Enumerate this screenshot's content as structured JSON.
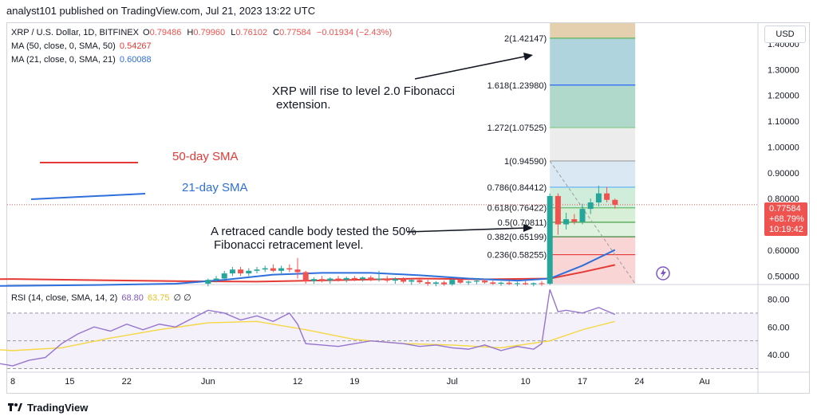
{
  "header": {
    "publisher_text": "analyst101 published on TradingView.com, Jul 21, 2023 13:22 UTC"
  },
  "legend": {
    "symbol": "XRP / U.S. Dollar, 1D, BITFINEX",
    "ohlc": {
      "O": "0.79486",
      "H": "0.79960",
      "L": "0.76102",
      "C": "0.77584",
      "change": "−0.01934 (−2.43%)"
    },
    "ma50_label": "MA (50, close, 0, SMA, 50)",
    "ma50_value": "0.54267",
    "ma21_label": "MA (21, close, 0, SMA, 21)",
    "ma21_value": "0.60088",
    "rsi_label": "RSI (14, close, SMA, 14, 2)",
    "rsi_value": "68.80",
    "rsi_sma_value": "63.75",
    "rsi_extra": "∅ ∅"
  },
  "currency": "USD",
  "price_tag": {
    "price": "0.77584",
    "change": "+68.79%",
    "countdown": "10:19:42"
  },
  "annotations": {
    "top_text_line1": "XRP   will rise to level 2.0 Fibonacci",
    "top_text_line2": "extension.",
    "bottom_text_line1": "A retraced candle body tested the 50%",
    "bottom_text_line2": "Fibonacci retracement level.",
    "sma50_label": "50-day SMA",
    "sma21_label": "21-day SMA"
  },
  "footer": {
    "brand": "TradingView"
  },
  "colors": {
    "up": "#26a69a",
    "down": "#ef5350",
    "sma50": "#e53935",
    "sma21": "#2e6fdb",
    "rsi": "#9575cd",
    "rsi_sma": "#f5d742"
  },
  "chart_data": {
    "type": "candlestick",
    "price_axis": {
      "min": 0.47,
      "max": 1.48,
      "ticks": [
        "1.40000",
        "1.30000",
        "1.20000",
        "1.10000",
        "1.00000",
        "0.90000",
        "0.80000",
        "0.60000",
        "0.50000"
      ],
      "tick_values": [
        1.4,
        1.3,
        1.2,
        1.1,
        1.0,
        0.9,
        0.8,
        0.6,
        0.5
      ]
    },
    "x_axis": {
      "labels": [
        "8",
        "15",
        "22",
        "Jun",
        "12",
        "19",
        "Jul",
        "10",
        "17",
        "24",
        "Au"
      ],
      "label_days": [
        0,
        7,
        14,
        24,
        35,
        42,
        54,
        63,
        70,
        77,
        85
      ]
    },
    "fibonacci": [
      {
        "ratio": "2",
        "price": "1.42147",
        "value": 1.42147
      },
      {
        "ratio": "1.618",
        "price": "1.23980",
        "value": 1.2398
      },
      {
        "ratio": "1.272",
        "price": "1.07525",
        "value": 1.07525
      },
      {
        "ratio": "1",
        "price": "0.94590",
        "value": 0.9459
      },
      {
        "ratio": "0.786",
        "price": "0.84412",
        "value": 0.84412
      },
      {
        "ratio": "0.618",
        "price": "0.76422",
        "value": 0.76422
      },
      {
        "ratio": "0.5",
        "price": "0.70811",
        "value": 0.70811
      },
      {
        "ratio": "0.382",
        "price": "0.65199",
        "value": 0.65199
      },
      {
        "ratio": "0.236",
        "price": "0.58255",
        "value": 0.58255
      }
    ],
    "candles": [
      {
        "d": 24,
        "o": 0.47,
        "h": 0.49,
        "l": 0.46,
        "c": 0.485
      },
      {
        "d": 25,
        "o": 0.485,
        "h": 0.5,
        "l": 0.475,
        "c": 0.49
      },
      {
        "d": 26,
        "o": 0.49,
        "h": 0.52,
        "l": 0.485,
        "c": 0.51
      },
      {
        "d": 27,
        "o": 0.51,
        "h": 0.535,
        "l": 0.5,
        "c": 0.525
      },
      {
        "d": 28,
        "o": 0.525,
        "h": 0.535,
        "l": 0.5,
        "c": 0.51
      },
      {
        "d": 29,
        "o": 0.51,
        "h": 0.53,
        "l": 0.5,
        "c": 0.52
      },
      {
        "d": 30,
        "o": 0.52,
        "h": 0.535,
        "l": 0.51,
        "c": 0.525
      },
      {
        "d": 31,
        "o": 0.525,
        "h": 0.54,
        "l": 0.515,
        "c": 0.53
      },
      {
        "d": 32,
        "o": 0.53,
        "h": 0.545,
        "l": 0.515,
        "c": 0.52
      },
      {
        "d": 33,
        "o": 0.52,
        "h": 0.54,
        "l": 0.51,
        "c": 0.53
      },
      {
        "d": 34,
        "o": 0.53,
        "h": 0.545,
        "l": 0.515,
        "c": 0.525
      },
      {
        "d": 35,
        "o": 0.525,
        "h": 0.57,
        "l": 0.49,
        "c": 0.515
      },
      {
        "d": 36,
        "o": 0.515,
        "h": 0.52,
        "l": 0.47,
        "c": 0.48
      },
      {
        "d": 37,
        "o": 0.48,
        "h": 0.495,
        "l": 0.47,
        "c": 0.488
      },
      {
        "d": 38,
        "o": 0.488,
        "h": 0.5,
        "l": 0.475,
        "c": 0.482
      },
      {
        "d": 39,
        "o": 0.482,
        "h": 0.495,
        "l": 0.47,
        "c": 0.49
      },
      {
        "d": 40,
        "o": 0.49,
        "h": 0.5,
        "l": 0.478,
        "c": 0.485
      },
      {
        "d": 41,
        "o": 0.485,
        "h": 0.498,
        "l": 0.475,
        "c": 0.492
      },
      {
        "d": 42,
        "o": 0.492,
        "h": 0.5,
        "l": 0.48,
        "c": 0.488
      },
      {
        "d": 43,
        "o": 0.488,
        "h": 0.498,
        "l": 0.478,
        "c": 0.494
      },
      {
        "d": 44,
        "o": 0.494,
        "h": 0.502,
        "l": 0.48,
        "c": 0.486
      },
      {
        "d": 45,
        "o": 0.486,
        "h": 0.52,
        "l": 0.478,
        "c": 0.49
      },
      {
        "d": 46,
        "o": 0.49,
        "h": 0.5,
        "l": 0.475,
        "c": 0.482
      },
      {
        "d": 47,
        "o": 0.482,
        "h": 0.495,
        "l": 0.47,
        "c": 0.488
      },
      {
        "d": 48,
        "o": 0.488,
        "h": 0.495,
        "l": 0.472,
        "c": 0.478
      },
      {
        "d": 49,
        "o": 0.478,
        "h": 0.488,
        "l": 0.465,
        "c": 0.484
      },
      {
        "d": 50,
        "o": 0.484,
        "h": 0.49,
        "l": 0.47,
        "c": 0.476
      },
      {
        "d": 51,
        "o": 0.476,
        "h": 0.485,
        "l": 0.462,
        "c": 0.47
      },
      {
        "d": 52,
        "o": 0.47,
        "h": 0.48,
        "l": 0.46,
        "c": 0.475
      },
      {
        "d": 53,
        "o": 0.475,
        "h": 0.482,
        "l": 0.462,
        "c": 0.468
      },
      {
        "d": 54,
        "o": 0.468,
        "h": 0.49,
        "l": 0.462,
        "c": 0.485
      },
      {
        "d": 55,
        "o": 0.485,
        "h": 0.49,
        "l": 0.47,
        "c": 0.474
      },
      {
        "d": 56,
        "o": 0.474,
        "h": 0.482,
        "l": 0.465,
        "c": 0.478
      },
      {
        "d": 57,
        "o": 0.478,
        "h": 0.49,
        "l": 0.468,
        "c": 0.482
      },
      {
        "d": 58,
        "o": 0.482,
        "h": 0.49,
        "l": 0.47,
        "c": 0.475
      },
      {
        "d": 59,
        "o": 0.475,
        "h": 0.482,
        "l": 0.465,
        "c": 0.47
      },
      {
        "d": 60,
        "o": 0.47,
        "h": 0.478,
        "l": 0.462,
        "c": 0.474
      },
      {
        "d": 61,
        "o": 0.474,
        "h": 0.482,
        "l": 0.465,
        "c": 0.469
      },
      {
        "d": 62,
        "o": 0.469,
        "h": 0.478,
        "l": 0.46,
        "c": 0.472
      },
      {
        "d": 63,
        "o": 0.472,
        "h": 0.48,
        "l": 0.465,
        "c": 0.468
      },
      {
        "d": 64,
        "o": 0.468,
        "h": 0.475,
        "l": 0.46,
        "c": 0.472
      },
      {
        "d": 65,
        "o": 0.472,
        "h": 0.48,
        "l": 0.462,
        "c": 0.47
      },
      {
        "d": 66,
        "o": 0.47,
        "h": 0.82,
        "l": 0.465,
        "c": 0.81
      },
      {
        "d": 67,
        "o": 0.81,
        "h": 0.82,
        "l": 0.66,
        "c": 0.7
      },
      {
        "d": 68,
        "o": 0.7,
        "h": 0.745,
        "l": 0.68,
        "c": 0.72
      },
      {
        "d": 69,
        "o": 0.72,
        "h": 0.74,
        "l": 0.7,
        "c": 0.71
      },
      {
        "d": 70,
        "o": 0.71,
        "h": 0.78,
        "l": 0.7,
        "c": 0.76
      },
      {
        "d": 71,
        "o": 0.76,
        "h": 0.8,
        "l": 0.74,
        "c": 0.785
      },
      {
        "d": 72,
        "o": 0.785,
        "h": 0.85,
        "l": 0.77,
        "c": 0.82
      },
      {
        "d": 73,
        "o": 0.82,
        "h": 0.845,
        "l": 0.785,
        "c": 0.795
      },
      {
        "d": 74,
        "o": 0.795,
        "h": 0.8,
        "l": 0.761,
        "c": 0.776
      }
    ],
    "sma50": {
      "days": [
        -6,
        0,
        10,
        20,
        30,
        40,
        50,
        58,
        66,
        70,
        74
      ],
      "values": [
        0.487,
        0.488,
        0.484,
        0.48,
        0.478,
        0.484,
        0.49,
        0.487,
        0.49,
        0.515,
        0.543
      ]
    },
    "sma21": {
      "days": [
        -6,
        0,
        10,
        20,
        26,
        32,
        38,
        44,
        50,
        56,
        62,
        66,
        70,
        74
      ],
      "values": [
        0.46,
        0.462,
        0.465,
        0.47,
        0.485,
        0.505,
        0.512,
        0.512,
        0.503,
        0.49,
        0.482,
        0.49,
        0.54,
        0.601
      ]
    },
    "rsi": {
      "axis_ticks": [
        "80.00",
        "60.00",
        "40.00"
      ],
      "tick_values": [
        80,
        60,
        40
      ],
      "min": 28,
      "max": 90,
      "days": [
        -6,
        -4,
        -2,
        0,
        2,
        4,
        6,
        8,
        10,
        12,
        14,
        16,
        18,
        20,
        22,
        24,
        26,
        28,
        30,
        32,
        34,
        35,
        36,
        38,
        40,
        42,
        44,
        46,
        48,
        50,
        52,
        54,
        56,
        58,
        60,
        62,
        64,
        65,
        66,
        67,
        68,
        70,
        72,
        74
      ],
      "values": [
        36,
        33,
        34,
        32,
        36,
        38,
        48,
        55,
        60,
        57,
        62,
        58,
        62,
        60,
        66,
        72,
        70,
        65,
        68,
        64,
        70,
        62,
        48,
        47,
        46,
        48,
        50,
        49,
        48,
        46,
        47,
        45,
        44,
        47,
        43,
        46,
        44,
        48,
        87,
        71,
        72,
        70,
        74,
        69
      ]
    },
    "rsi_sma": {
      "days": [
        -6,
        0,
        6,
        12,
        18,
        24,
        30,
        36,
        42,
        48,
        54,
        60,
        66,
        70,
        74
      ],
      "values": [
        45,
        43,
        45,
        52,
        58,
        63,
        64,
        58,
        51,
        48,
        47,
        45,
        50,
        58,
        64
      ]
    }
  }
}
